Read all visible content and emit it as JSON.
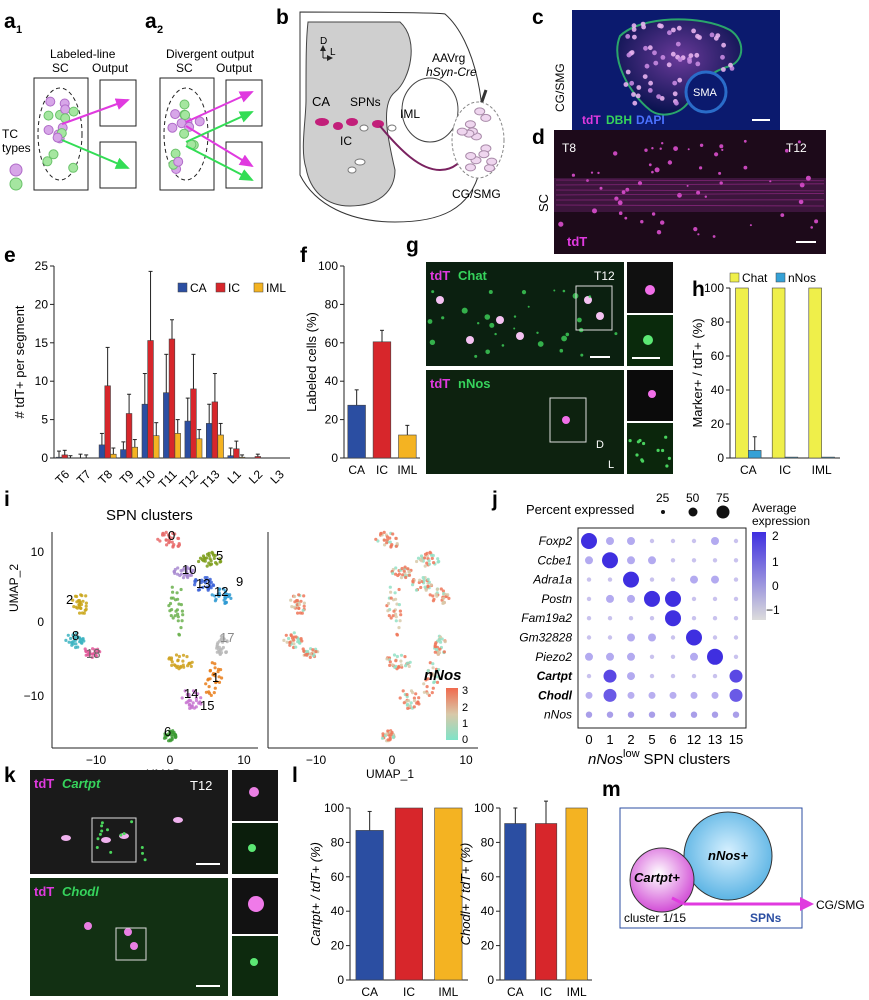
{
  "panels": {
    "a1": {
      "label": "a",
      "sub": "1",
      "title": "Labeled-line",
      "sc": "SC",
      "out": "Output",
      "tc1": "TC",
      "tc2": "types"
    },
    "a2": {
      "label": "a",
      "sub": "2",
      "title": "Divergent output",
      "sc": "SC",
      "out": "Output"
    },
    "b": {
      "label": "b",
      "sc": "SC",
      "d": "D",
      "l": "L",
      "ca": "CA",
      "spns": "SPNs",
      "ic": "IC",
      "iml": "IML",
      "aav1": "AAVrg",
      "aav2": "hSyn-Cre",
      "cgsmg": "CG/SMG"
    },
    "c": {
      "label": "c",
      "side": "CG/SMG",
      "tdt": "tdT",
      "dbh": "DBH",
      "dapi": "DAPI",
      "sma": "SMA"
    },
    "d": {
      "label": "d",
      "t8": "T8",
      "t12": "T12",
      "sc": "SC",
      "tdt": "tdT"
    },
    "e": {
      "label": "e"
    },
    "f": {
      "label": "f"
    },
    "g": {
      "label": "g",
      "tdt": "tdT",
      "chat": "Chat",
      "nnos": "nNos",
      "t12": "T12",
      "d": "D",
      "l": "L"
    },
    "h": {
      "label": "h"
    },
    "i": {
      "label": "i",
      "title": "SPN clusters",
      "x": "UMAP_1",
      "y": "UMAP_2",
      "nnos": "nNos",
      "clusters": [
        "0",
        "5",
        "10",
        "13",
        "12",
        "9",
        "2",
        "8",
        "18",
        "17",
        "1",
        "14",
        "15",
        "6"
      ],
      "scale": [
        "3",
        "2",
        "1",
        "0"
      ],
      "ticksL": [
        "−10",
        "0",
        "10"
      ],
      "ticksR": [
        "−10",
        "0",
        "10"
      ],
      "yticks": [
        "10",
        "0",
        "−10"
      ]
    },
    "j": {
      "label": "j",
      "pct_title": "Percent expressed",
      "pct_vals": [
        "25",
        "50",
        "75"
      ],
      "avg_title1": "Average",
      "avg_title2": "expression",
      "scale": [
        "2",
        "1",
        "0",
        "−1"
      ],
      "genes": [
        "Foxp2",
        "Ccbe1",
        "Adra1a",
        "Postn",
        "Fam19a2",
        "Gm32828",
        "Piezo2",
        "Cartpt",
        "Chodl",
        "nNos"
      ],
      "clusters": [
        "0",
        "1",
        "2",
        "5",
        "6",
        "12",
        "13",
        "15"
      ],
      "xlab_italic": "nNos",
      "xlab_sup": "low",
      "xlab_rest": "SPN clusters"
    },
    "k": {
      "label": "k",
      "tdt": "tdT",
      "cartpt": "Cartpt",
      "chodl": "Chodl",
      "t12": "T12"
    },
    "l": {
      "label": "l"
    },
    "m": {
      "label": "m",
      "cartpt": "Cartpt+",
      "nnos": "nNos+",
      "cluster": "cluster 1/15",
      "spns": "SPNs",
      "target": "CG/SMG"
    }
  },
  "chart_data": [
    {
      "id": "e",
      "type": "bar",
      "ylabel": "# tdT+ per segment",
      "ylim": [
        0,
        25
      ],
      "yticks": [
        0,
        5,
        10,
        15,
        20,
        25
      ],
      "categories": [
        "T6",
        "T7",
        "T8",
        "T9",
        "T10",
        "T11",
        "T12",
        "T13",
        "L1",
        "L2",
        "L3"
      ],
      "series": [
        {
          "name": "CA",
          "color": "#2b4ea2",
          "values": [
            0.1,
            0,
            1.7,
            1.1,
            7,
            8.5,
            4.8,
            4.5,
            0.3,
            0,
            0
          ],
          "err": [
            0.8,
            0.5,
            1.5,
            1,
            4,
            5,
            3,
            2.5,
            1,
            0,
            0
          ]
        },
        {
          "name": "IC",
          "color": "#d7262b",
          "values": [
            0.4,
            0,
            9.4,
            5.8,
            15.3,
            15.5,
            9,
            7.3,
            1.2,
            0.2,
            0
          ],
          "err": [
            0.6,
            0.4,
            5,
            2.5,
            9,
            2.5,
            4.5,
            3.7,
            1,
            0.3,
            0
          ]
        },
        {
          "name": "IML",
          "color": "#f4b322",
          "values": [
            0,
            0,
            0.5,
            1.4,
            2.9,
            3.2,
            2.5,
            3,
            0.1,
            0,
            0
          ],
          "err": [
            0.3,
            0,
            0.8,
            1,
            1.7,
            1.8,
            1.2,
            1.5,
            0.3,
            0,
            0
          ]
        }
      ]
    },
    {
      "id": "f",
      "type": "bar",
      "ylabel": "Labeled cells (%)",
      "ylim": [
        0,
        100
      ],
      "yticks": [
        0,
        20,
        40,
        60,
        80,
        100
      ],
      "categories": [
        "CA",
        "IC",
        "IML"
      ],
      "values": [
        27.5,
        60.5,
        12
      ],
      "err": [
        8,
        6,
        5
      ],
      "colors": [
        "#2b4ea2",
        "#d7262b",
        "#f4b322"
      ]
    },
    {
      "id": "h",
      "type": "bar",
      "ylabel": "Marker+ / tdT+ (%)",
      "ylim": [
        0,
        100
      ],
      "yticks": [
        0,
        20,
        40,
        60,
        80,
        100
      ],
      "categories": [
        "CA",
        "IC",
        "IML"
      ],
      "series": [
        {
          "name": "Chat",
          "color": "#efef4a",
          "values": [
            100,
            100,
            100
          ]
        },
        {
          "name": "nNos",
          "color": "#35a1d6",
          "values": [
            4.5,
            0.5,
            0.5
          ],
          "err": [
            8,
            0,
            0
          ]
        }
      ]
    },
    {
      "id": "l1",
      "type": "bar",
      "ylabel": "Cartpt+ / tdT+ (%)",
      "ylim": [
        0,
        100
      ],
      "yticks": [
        0,
        20,
        40,
        60,
        80,
        100
      ],
      "categories": [
        "CA",
        "IC",
        "IML"
      ],
      "values": [
        87,
        100,
        100
      ],
      "err": [
        11,
        0,
        0
      ],
      "colors": [
        "#2b4ea2",
        "#d7262b",
        "#f4b322"
      ]
    },
    {
      "id": "l2",
      "type": "bar",
      "ylabel": "Chodl+ / tdT+ (%)",
      "ylim": [
        0,
        100
      ],
      "yticks": [
        0,
        20,
        40,
        60,
        80,
        100
      ],
      "categories": [
        "CA",
        "IC",
        "IML"
      ],
      "values": [
        91,
        91,
        100
      ],
      "err": [
        9,
        13,
        0
      ],
      "colors": [
        "#2b4ea2",
        "#d7262b",
        "#f4b322"
      ]
    }
  ]
}
